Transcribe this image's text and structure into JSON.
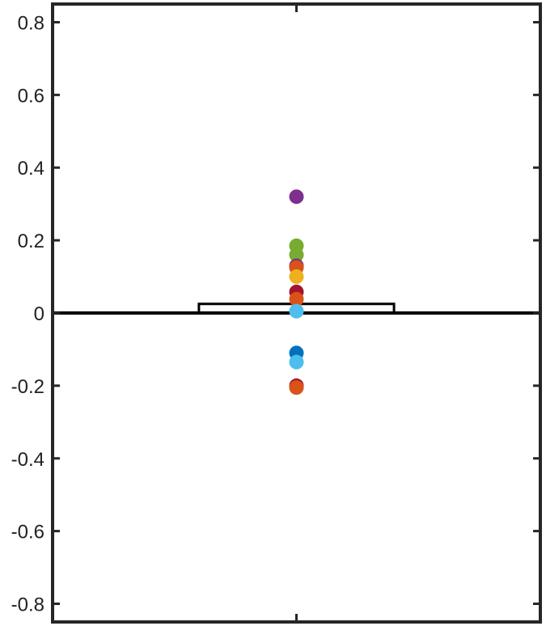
{
  "chart_data": {
    "type": "bar+scatter",
    "title": "",
    "xlabel": "",
    "ylabel": "",
    "ylim": [
      -0.85,
      0.85
    ],
    "xlim": [
      0,
      2
    ],
    "yticks": [
      "0.8",
      "0.6",
      "0.4",
      "0.2",
      "0",
      "-0.2",
      "-0.4",
      "-0.6",
      "-0.8"
    ],
    "ytick_values": [
      0.8,
      0.6,
      0.4,
      0.2,
      0,
      -0.2,
      -0.4,
      -0.6,
      -0.8
    ],
    "xtick_values": [
      1
    ],
    "bar": {
      "x": 1,
      "value": 0.025,
      "width": 0.8,
      "fill": "#ffffff",
      "edge": "#000000"
    },
    "points": [
      {
        "x": 1,
        "y": 0.32,
        "color": "#7E2F8E"
      },
      {
        "x": 1,
        "y": 0.185,
        "color": "#77AC30"
      },
      {
        "x": 1,
        "y": 0.16,
        "color": "#77AC30"
      },
      {
        "x": 1,
        "y": 0.13,
        "color": "#7E2F8E"
      },
      {
        "x": 1,
        "y": 0.125,
        "color": "#D95319"
      },
      {
        "x": 1,
        "y": 0.1,
        "color": "#EDB120"
      },
      {
        "x": 1,
        "y": 0.058,
        "color": "#A2142F"
      },
      {
        "x": 1,
        "y": 0.038,
        "color": "#D95319"
      },
      {
        "x": 1,
        "y": 0.005,
        "color": "#4DBEEE"
      },
      {
        "x": 1,
        "y": -0.11,
        "color": "#0072BD"
      },
      {
        "x": 1,
        "y": -0.135,
        "color": "#4DBEEE"
      },
      {
        "x": 1,
        "y": -0.2,
        "color": "#A2142F"
      },
      {
        "x": 1,
        "y": -0.205,
        "color": "#D95319"
      }
    ],
    "zero_line": true,
    "grid": false,
    "colors": {
      "axis": "#262626",
      "text": "#222222",
      "zero_line": "#000000"
    }
  }
}
